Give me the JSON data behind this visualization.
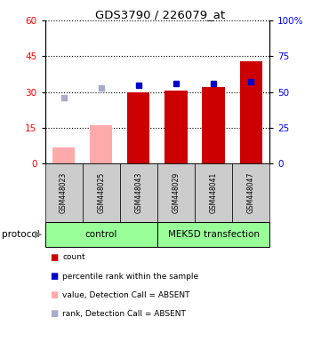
{
  "title": "GDS3790 / 226079_at",
  "samples": [
    "GSM448023",
    "GSM448025",
    "GSM448043",
    "GSM448029",
    "GSM448041",
    "GSM448047"
  ],
  "groups": {
    "control": [
      0,
      1,
      2
    ],
    "MEK5D transfection": [
      3,
      4,
      5
    ]
  },
  "bar_values": [
    7,
    16,
    30,
    30.5,
    32,
    43
  ],
  "bar_absent": [
    true,
    true,
    false,
    false,
    false,
    false
  ],
  "rank_values": [
    46,
    53,
    55,
    56,
    56,
    57
  ],
  "rank_absent": [
    true,
    true,
    false,
    false,
    false,
    false
  ],
  "ylim_left": [
    0,
    60
  ],
  "ylim_right": [
    0,
    100
  ],
  "yticks_left": [
    0,
    15,
    30,
    45,
    60
  ],
  "yticks_right": [
    0,
    25,
    50,
    75,
    100
  ],
  "bar_color_normal": "#cc0000",
  "bar_color_absent": "#ffaaaa",
  "rank_color_normal": "#0000cc",
  "rank_color_absent": "#aaaacc",
  "group_color": "#99ff99",
  "sample_bg_color": "#cccccc",
  "legend_items": [
    {
      "label": "count",
      "color": "#cc0000"
    },
    {
      "label": "percentile rank within the sample",
      "color": "#0000cc"
    },
    {
      "label": "value, Detection Call = ABSENT",
      "color": "#ffaaaa"
    },
    {
      "label": "rank, Detection Call = ABSENT",
      "color": "#aaaacc"
    }
  ]
}
